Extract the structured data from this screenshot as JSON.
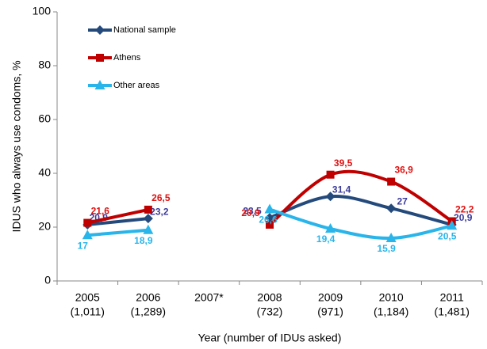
{
  "chart_data": {
    "type": "line",
    "ylabel": "IDUS who always use condoms, %",
    "xlabel": "Year (number of IDUs asked)",
    "categories": [
      "2005",
      "2006",
      "2007*",
      "2008",
      "2009",
      "2010",
      "2011"
    ],
    "category_sublabels": [
      "(1,011)",
      "(1,289)",
      null,
      "(732)",
      "(971)",
      "(1,184)",
      "(1,481)"
    ],
    "ylim": [
      0,
      100
    ],
    "yticks": [
      0,
      20,
      40,
      60,
      80,
      100
    ],
    "smooth": true,
    "legend": "top-left",
    "series": [
      {
        "name": "National sample",
        "color": "#244a7c",
        "label_color": "#3b3b9b",
        "marker": "diamond",
        "values": [
          20.9,
          23.2,
          null,
          23.5,
          31.4,
          27,
          20.9
        ],
        "value_labels": [
          "20,9",
          "23,2",
          null,
          "23,5",
          "31,4",
          "27",
          "20,9"
        ]
      },
      {
        "name": "Athens",
        "color": "#c00000",
        "label_color": "#e01010",
        "marker": "square",
        "values": [
          21.6,
          26.5,
          null,
          20.9,
          39.5,
          36.9,
          22.2
        ],
        "value_labels": [
          "21,6",
          "26,5",
          null,
          "20,9",
          "39,5",
          "36,9",
          "22,2"
        ]
      },
      {
        "name": "Other areas",
        "color": "#29b5ea",
        "label_color": "#29b5ea",
        "marker": "triangle",
        "values": [
          17,
          18.9,
          null,
          26.6,
          19.4,
          15.9,
          20.5
        ],
        "value_labels": [
          "17",
          "18,9",
          null,
          "26,6",
          "19,4",
          "15,9",
          "20,5"
        ]
      }
    ]
  }
}
